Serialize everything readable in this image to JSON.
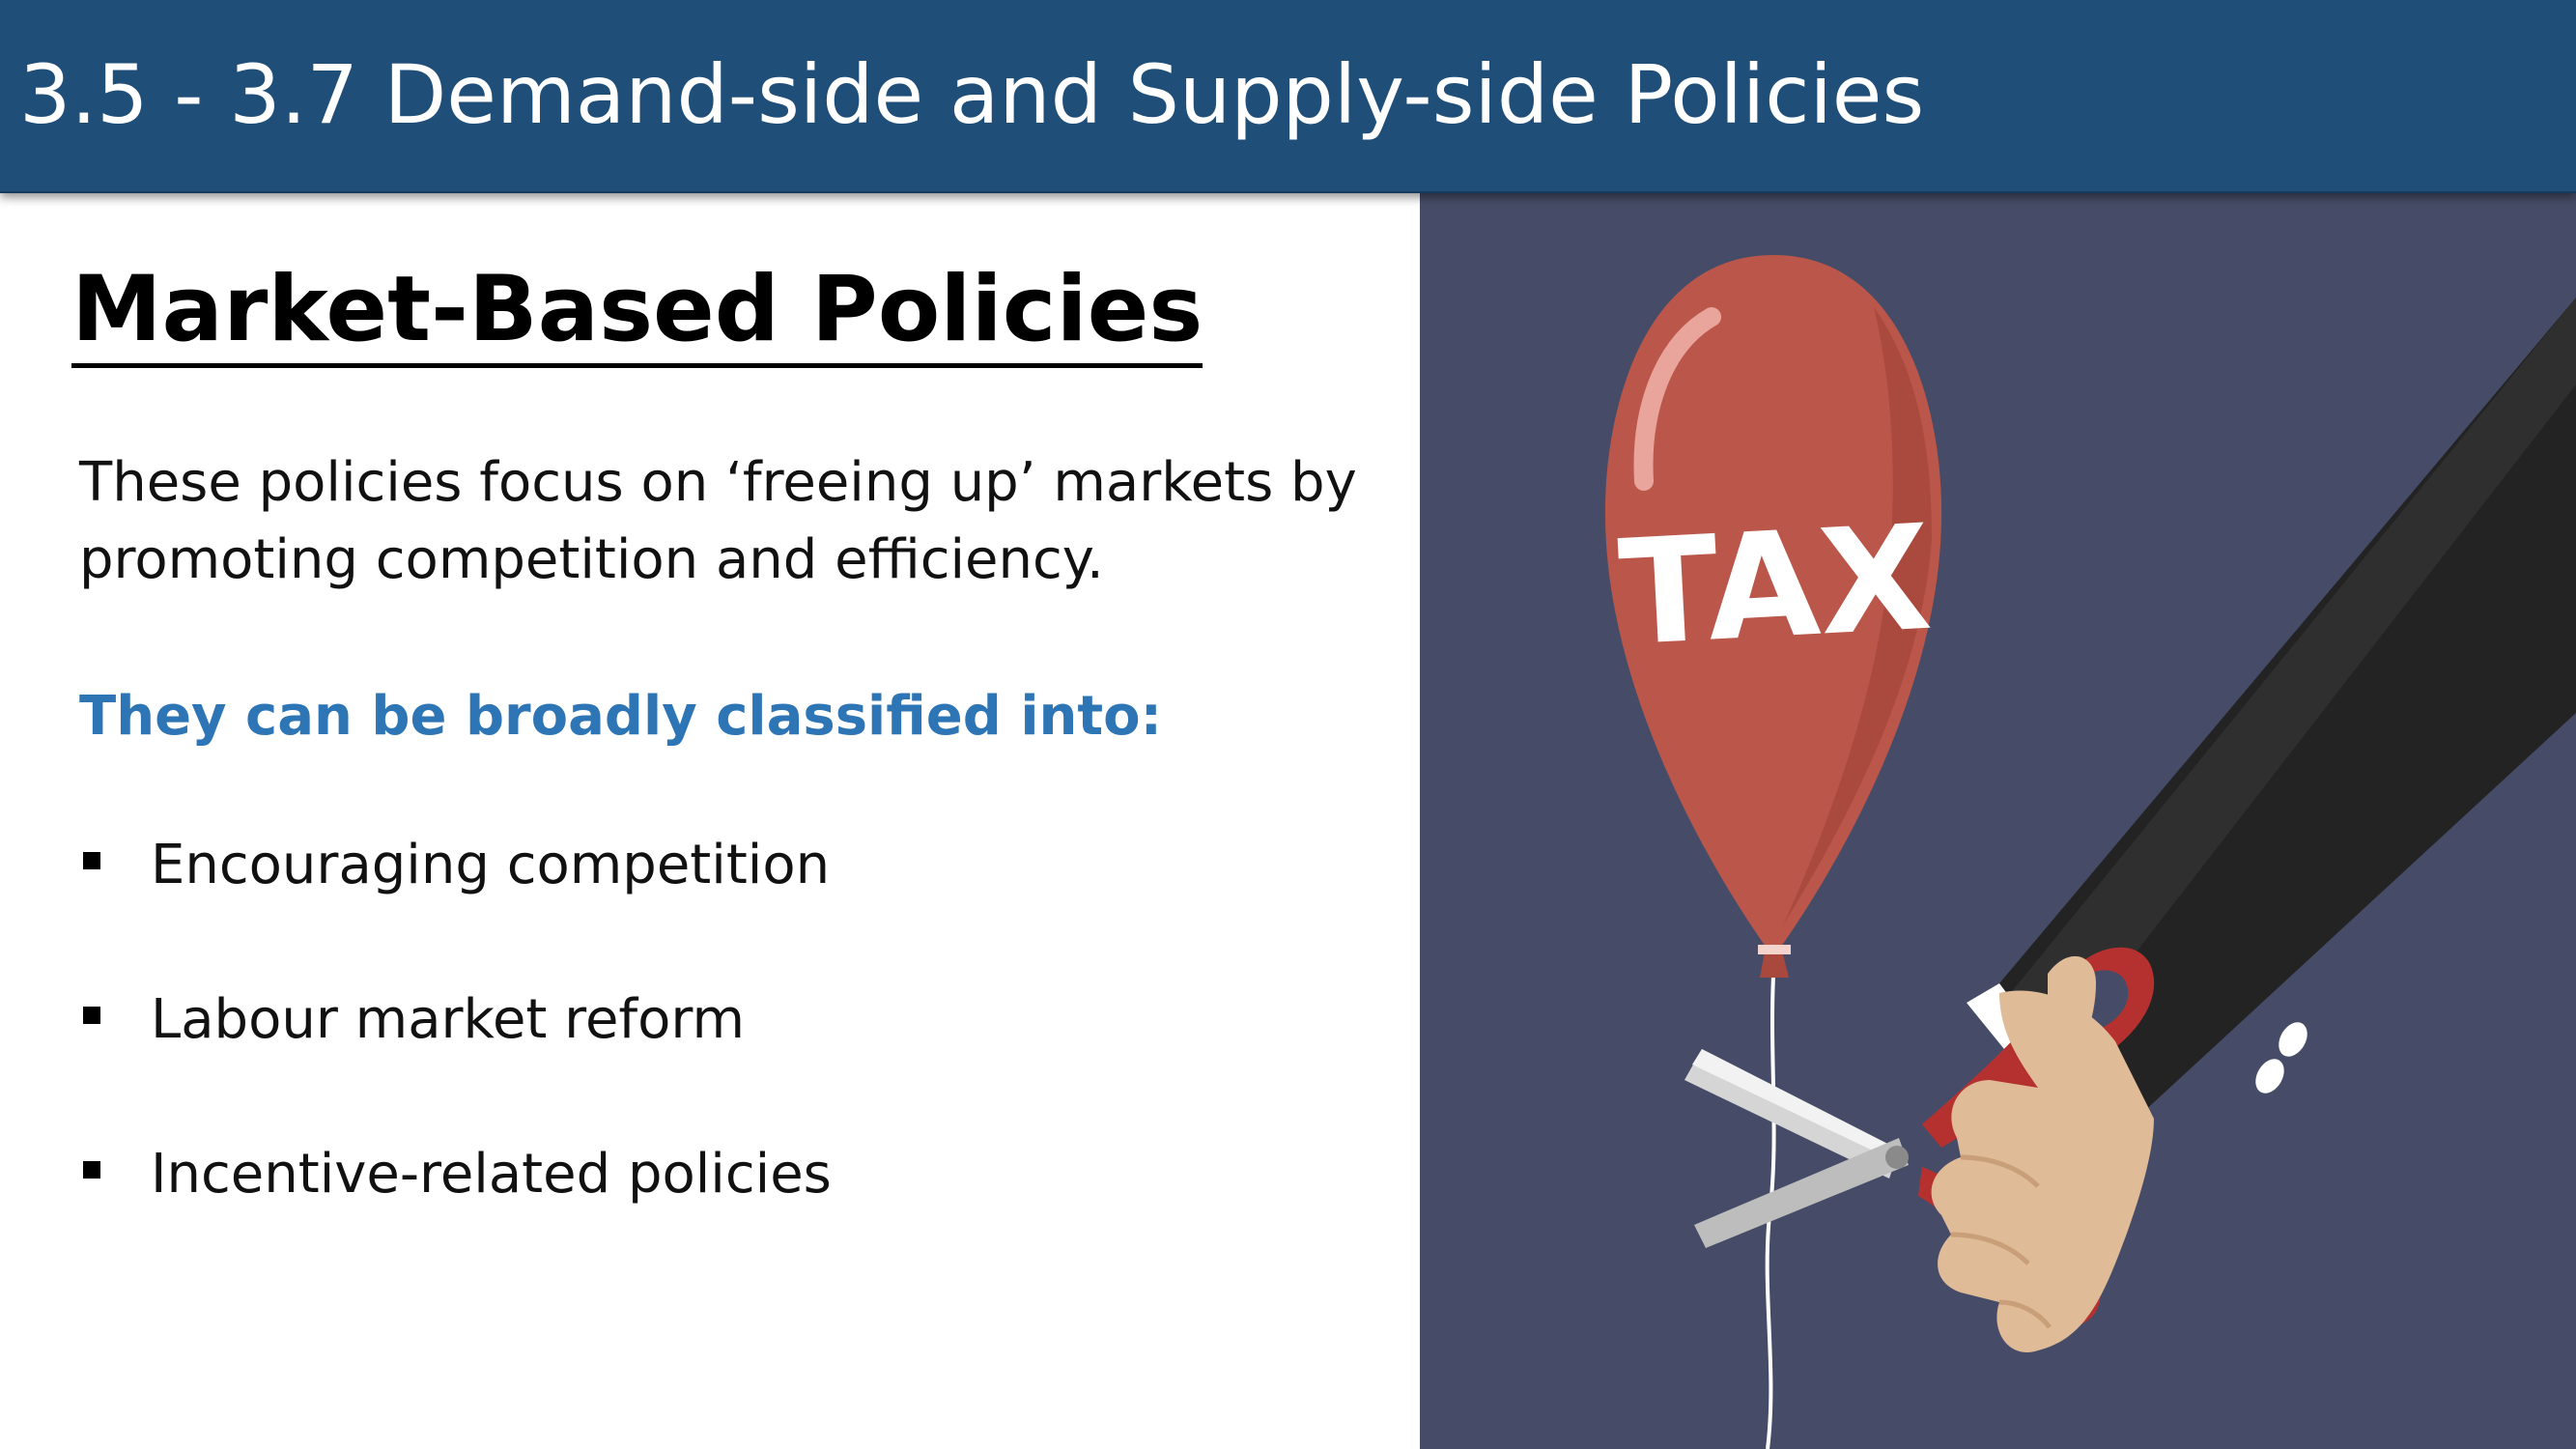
{
  "header": {
    "title": "3.5 - 3.7 Demand-side and Supply-side Policies"
  },
  "section": {
    "heading": "Market-Based Policies",
    "intro_lines": [
      "These policies focus on ‘freeing up’ markets by",
      "promoting competition and efficiency."
    ],
    "classify_label": "They can be broadly classified into:",
    "bullets": [
      "Encouraging competition",
      "Labour market reform",
      "Incentive-related policies"
    ]
  },
  "illustration": {
    "balloon_label": "TAX",
    "colors": {
      "background": "#464c67",
      "balloon": "#bb574a",
      "sleeve": "#232323",
      "skin": "#dfbb97",
      "scissor_handle": "#b5312f",
      "blade": "#d5d5d5"
    }
  },
  "colors": {
    "header_bg": "#1f4e79",
    "header_text": "#ffffff",
    "accent_text": "#2e75b6"
  }
}
